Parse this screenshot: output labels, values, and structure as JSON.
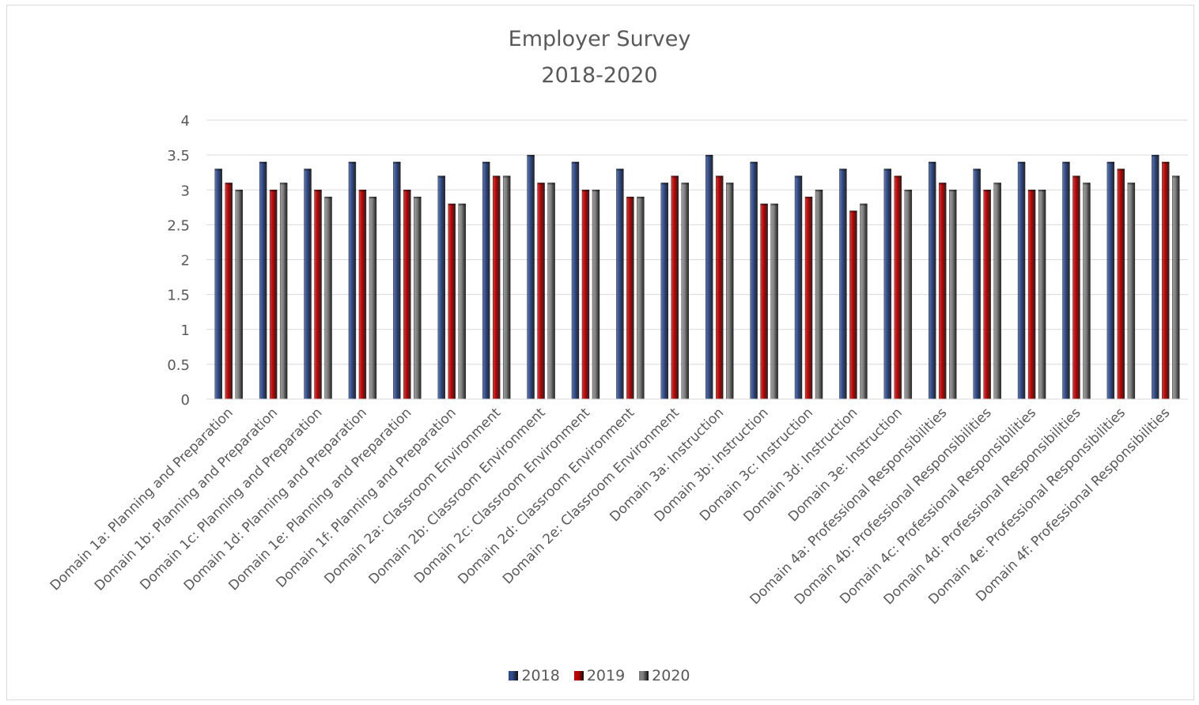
{
  "chart_data": {
    "type": "bar",
    "title": "Employer Survey",
    "subtitle": "2018-2020",
    "xlabel": "",
    "ylabel": "",
    "ylim": [
      0,
      4
    ],
    "yticks": [
      "0",
      "0.5",
      "1",
      "1.5",
      "2",
      "2.5",
      "3",
      "3.5",
      "4"
    ],
    "grid": true,
    "legend_position": "bottom",
    "categories": [
      "Domain 1a: Planning and Preparation",
      "Domain 1b: Planning and Preparation",
      "Domain 1c: Planning and Preparation",
      "Domain 1d: Planning and Preparation",
      "Domain 1e: Planning and Preparation",
      "Domain 1f: Planning and Preparation",
      "Domain 2a: Classroom Environment",
      "Domain 2b: Classroom Environment",
      "Domain 2c: Classroom Environment",
      "Domain 2d: Classroom Environment",
      "Domain 2e: Classroom Environment",
      "Domain 3a: Instruction",
      "Domain 3b: Instruction",
      "Domain 3c: Instruction",
      "Domain 3d: Instruction",
      "Domain 3e: Instruction",
      "Domain 4a: Professional Responsibilities",
      "Domain 4b: Professional Responsibilities",
      "Domain 4c: Professional Responsibilities",
      "Domain 4d: Professional Responsibilities",
      "Domain 4e: Professional Responsibilities",
      "Domain 4f: Professional Responsibilities"
    ],
    "series": [
      {
        "name": "2018",
        "color": "#2f4b8c",
        "values": [
          3.3,
          3.4,
          3.3,
          3.4,
          3.4,
          3.2,
          3.4,
          3.5,
          3.4,
          3.3,
          3.1,
          3.5,
          3.4,
          3.2,
          3.3,
          3.3,
          3.4,
          3.3,
          3.4,
          3.4,
          3.4,
          3.5
        ]
      },
      {
        "name": "2019",
        "color": "#c00000",
        "values": [
          3.1,
          3.0,
          3.0,
          3.0,
          3.0,
          2.8,
          3.2,
          3.1,
          3.0,
          2.9,
          3.2,
          3.2,
          2.8,
          2.9,
          2.7,
          3.2,
          3.1,
          3.0,
          3.0,
          3.2,
          3.3,
          3.4
        ]
      },
      {
        "name": "2020",
        "color": "#7f7f7f",
        "values": [
          3.0,
          3.1,
          2.9,
          2.9,
          2.9,
          2.8,
          3.2,
          3.1,
          3.0,
          2.9,
          3.1,
          3.1,
          2.8,
          3.0,
          2.8,
          3.0,
          3.0,
          3.1,
          3.0,
          3.1,
          3.1,
          3.2
        ]
      }
    ]
  }
}
